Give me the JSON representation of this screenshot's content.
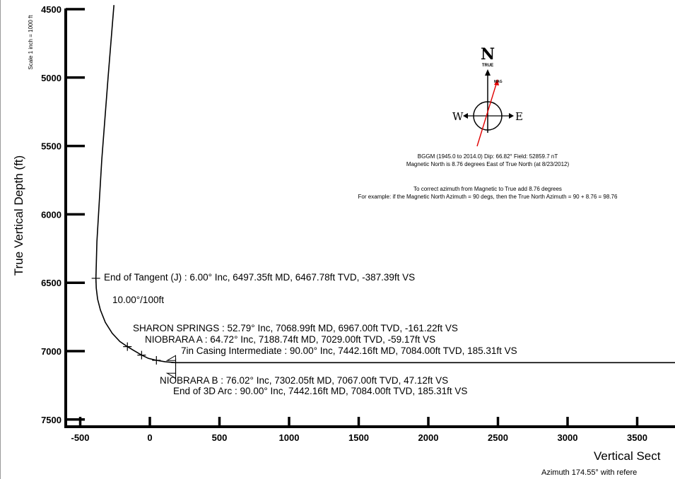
{
  "chart_data": {
    "type": "line",
    "ylabel": "True Vertical Depth (ft)",
    "xlabel": "Vertical Sect",
    "x_sublabel": "Azimuth 174.55° with refere",
    "scale_note": "Scale 1 inch = 1000 ft",
    "y_ticks": [
      "4500",
      "5000",
      "5500",
      "6000",
      "6500",
      "7000",
      "7500"
    ],
    "y_tick_values": [
      4500,
      5000,
      5500,
      6000,
      6500,
      7000,
      7500
    ],
    "x_ticks": [
      "-500",
      "0",
      "500",
      "1000",
      "1500",
      "2000",
      "2500",
      "3000",
      "3500"
    ],
    "x_tick_values": [
      -500,
      0,
      500,
      1000,
      1500,
      2000,
      2500,
      3000,
      3500
    ],
    "ylim": [
      4470,
      7520
    ],
    "xlim": [
      -600,
      3870
    ],
    "y_inverted": true,
    "series": [
      {
        "x": [
          -258,
          -300,
          -345,
          -380,
          -387.39,
          -385,
          -375,
          -355,
          -320,
          -270,
          -215,
          -161.22,
          -120,
          -59.17,
          -10,
          47.12,
          110,
          185.31,
          2000,
          3870
        ],
        "y": [
          4470,
          5000,
          5600,
          6200,
          6467.78,
          6540,
          6620,
          6700,
          6790,
          6870,
          6930,
          6967.0,
          6993,
          7029.0,
          7053,
          7067.0,
          7078,
          7084.0,
          7084,
          7084
        ]
      }
    ],
    "markers": [
      {
        "x": -387.39,
        "y": 6467.78,
        "shape": "cross"
      },
      {
        "x": -161.22,
        "y": 6967.0,
        "shape": "cross"
      },
      {
        "x": -59.17,
        "y": 7029.0,
        "shape": "cross"
      },
      {
        "x": 47.12,
        "y": 7067.0,
        "shape": "cross"
      },
      {
        "x": 185.31,
        "y": 7084.0,
        "shape": "cross"
      },
      {
        "x": 185.31,
        "y": 7084.0,
        "shape": "casing"
      },
      {
        "x": 185.31,
        "y": 7084.0,
        "shape": "casing-low"
      }
    ],
    "annotations": [
      {
        "text": "End of Tangent (J) : 6.00° Inc, 6497.35ft MD, 6467.78ft TVD, -387.39ft VS"
      },
      {
        "text": "10.00°/100ft"
      },
      {
        "text": "SHARON SPRINGS : 52.79° Inc, 7068.99ft MD, 6967.00ft TVD, -161.22ft VS"
      },
      {
        "text": "NIOBRARA A : 64.72° Inc, 7188.74ft MD, 7029.00ft TVD, -59.17ft VS"
      },
      {
        "text": "7in Casing Intermediate : 90.00° Inc, 7442.16ft MD, 7084.00ft TVD, 185.31ft VS"
      },
      {
        "text": "NIOBRARA B : 76.02° Inc, 7302.05ft MD, 7067.00ft TVD, 47.12ft VS"
      },
      {
        "text": "End of 3D Arc : 90.00° Inc, 7442.16ft MD, 7084.00ft TVD, 185.31ft VS"
      }
    ],
    "grid": false
  },
  "compass": {
    "north": "N",
    "true_label": "TRUE",
    "mag_label": "MAG",
    "west": "W",
    "east": "E",
    "mag_color": "#e00000",
    "line1": "BGGM (1945.0 to 2014.0) Dip: 66.82°  Field: 52859.7 nT",
    "line2": "Magnetic North is 8.76 degrees East of True North (at 8/23/2012)",
    "line3": "To correct azimuth from Magnetic to True add 8.76 degrees",
    "line4": "For example: if the Magnetic North Azimuth = 90 degs, then the True North Azimuth = 90 + 8.76 = 98.76"
  }
}
